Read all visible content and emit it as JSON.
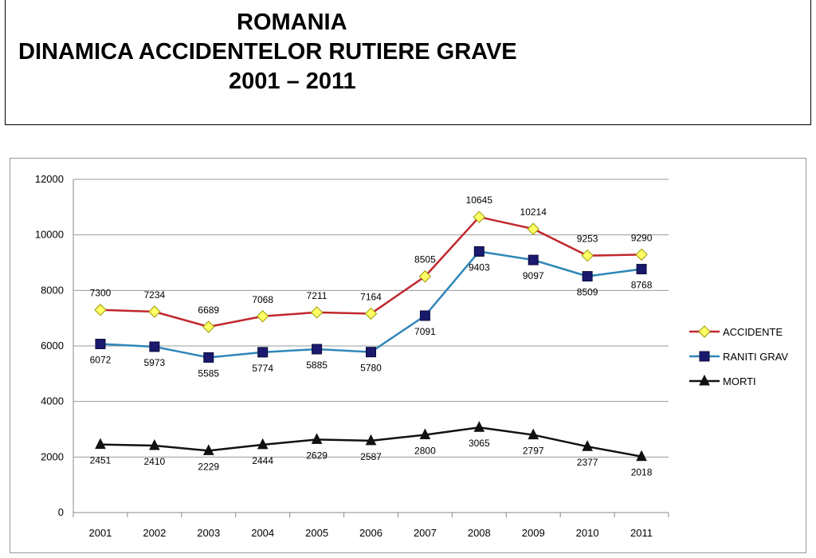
{
  "header": {
    "line1": "ROMANIA",
    "line2": "DINAMICA ACCIDENTELOR RUTIERE GRAVE",
    "line3": "2001 – 2011"
  },
  "chart_data": {
    "type": "line",
    "title": "ROMANIA DINAMICA ACCIDENTELOR RUTIERE GRAVE 2001 – 2011",
    "xlabel": "",
    "ylabel": "",
    "categories": [
      "2001",
      "2002",
      "2003",
      "2004",
      "2005",
      "2006",
      "2007",
      "2008",
      "2009",
      "2010",
      "2011"
    ],
    "ylim": [
      0,
      12000
    ],
    "yticks": [
      0,
      2000,
      4000,
      6000,
      8000,
      10000,
      12000
    ],
    "grid": true,
    "legend_position": "right",
    "series": [
      {
        "name": "ACCIDENTE",
        "color": "#c0272d",
        "marker": "diamond",
        "marker_color": "#ffff66",
        "values": [
          7300,
          7234,
          6689,
          7068,
          7211,
          7164,
          8505,
          10645,
          10214,
          9253,
          9290
        ]
      },
      {
        "name": "RANITI GRAV",
        "color": "#2e86b8",
        "marker": "square",
        "marker_color": "#1a1a6e",
        "values": [
          6072,
          5973,
          5585,
          5774,
          5885,
          5780,
          7091,
          9403,
          9097,
          8509,
          8768
        ]
      },
      {
        "name": "MORTI",
        "color": "#111111",
        "marker": "triangle",
        "marker_color": "#111111",
        "values": [
          2451,
          2410,
          2229,
          2444,
          2629,
          2587,
          2800,
          3065,
          2797,
          2377,
          2018
        ]
      }
    ]
  }
}
